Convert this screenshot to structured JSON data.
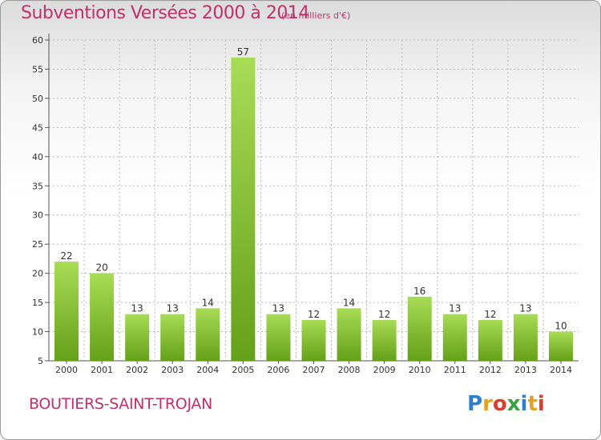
{
  "header": {
    "title": "Subventions Versées 2000 à 2014",
    "subtitle": "(en milliers d'€)"
  },
  "footer": {
    "commune": "BOUTIERS-SAINT-TROJAN",
    "logo_text": "Proxiti",
    "logo_colors": [
      "#2f7fd0",
      "#e8a020",
      "#d8402a",
      "#3aa040",
      "#2f7fd0",
      "#e8a020",
      "#d8402a"
    ]
  },
  "colors": {
    "bar_light": "#a8dc54",
    "bar_dark": "#64a018",
    "text_accent": "#c0306a",
    "grid": "#b8b8b8"
  },
  "chart_data": {
    "type": "bar",
    "title": "Subventions Versées 2000 à 2014",
    "subtitle": "(en milliers d'€)",
    "categories": [
      "2000",
      "2001",
      "2002",
      "2003",
      "2004",
      "2005",
      "2006",
      "2007",
      "2008",
      "2009",
      "2010",
      "2011",
      "2012",
      "2013",
      "2014"
    ],
    "values": [
      22,
      20,
      13,
      13,
      14,
      57,
      13,
      12,
      14,
      12,
      16,
      13,
      12,
      13,
      10
    ],
    "ylim": [
      5,
      60
    ],
    "yticks": [
      5,
      10,
      15,
      20,
      25,
      30,
      35,
      40,
      45,
      50,
      55,
      60
    ],
    "grid": true,
    "data_labels": true
  }
}
